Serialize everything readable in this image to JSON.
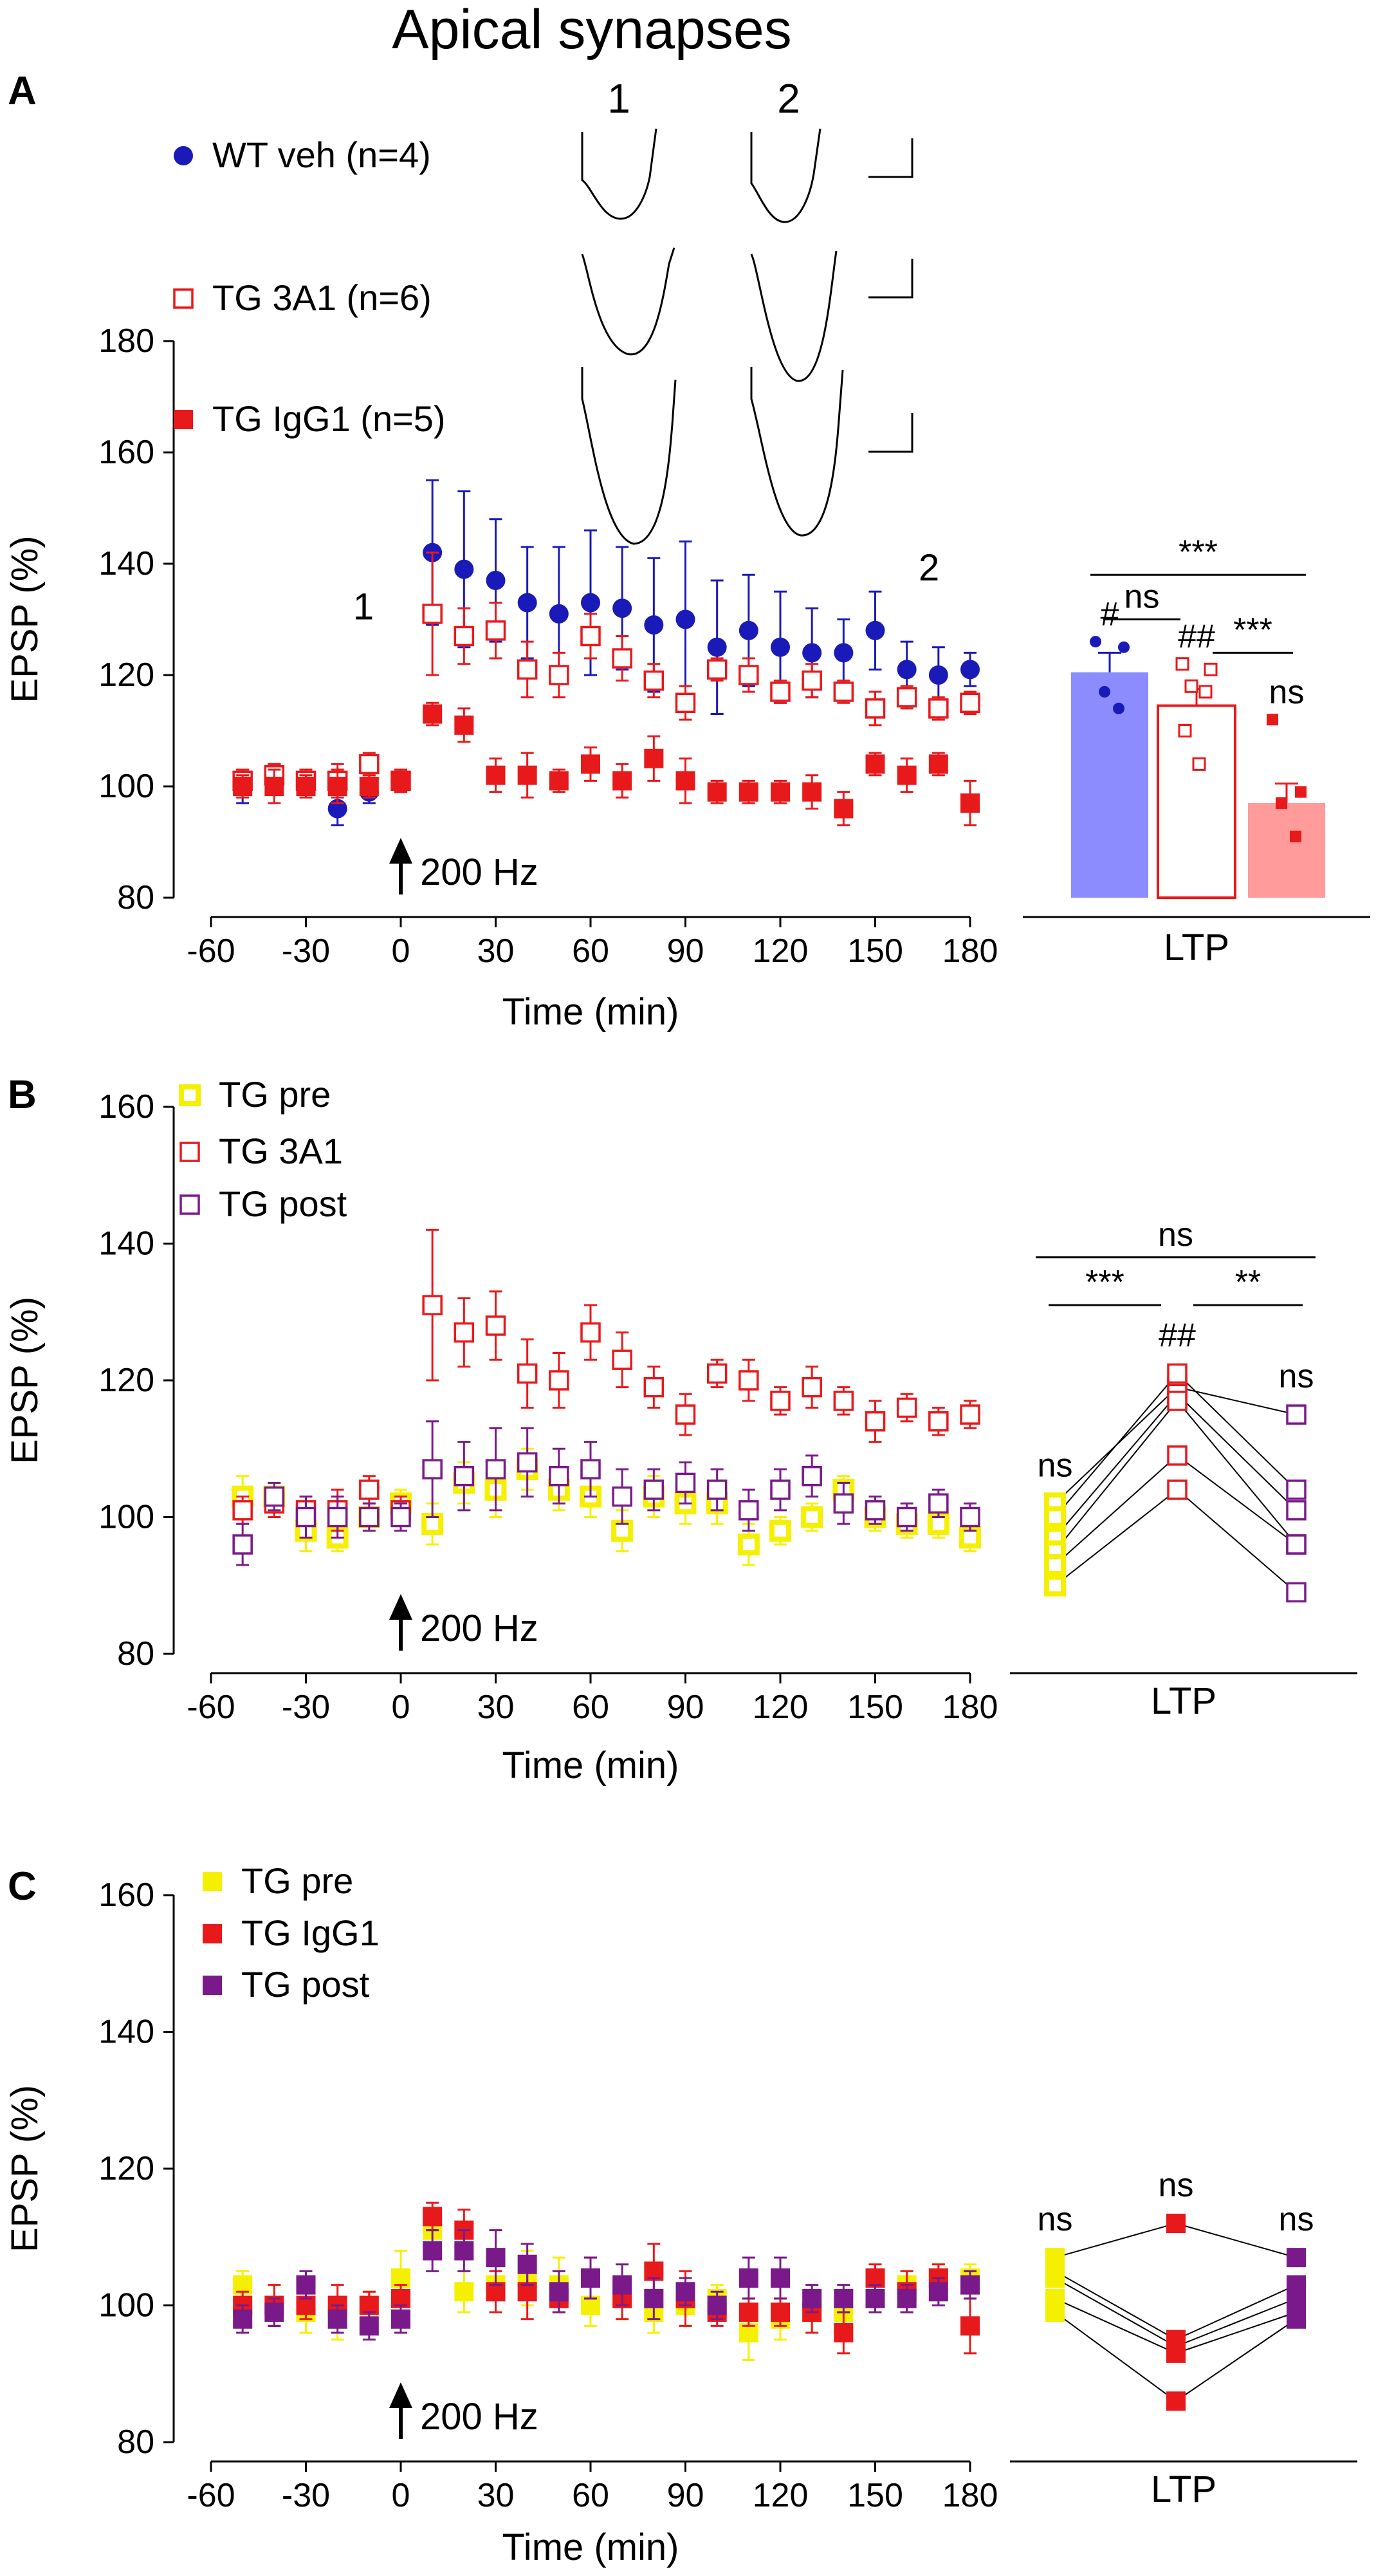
{
  "figure": {
    "title": "Apical synapses",
    "colors": {
      "wt": "#1a1ab8",
      "red": "#e8191b",
      "yellow": "#f5f000",
      "purple": "#7a1a8a",
      "wt_bar": "#8c8cff",
      "igg_bar": "#ff9b9b",
      "black": "#000000"
    },
    "arrow_icon": "up-arrow-icon"
  },
  "chart_data": [
    {
      "panel": "A",
      "type": "scatter",
      "title": "Apical synapses",
      "xlabel": "Time (min)",
      "ylabel": "EPSP (%)",
      "xlim": [
        -60,
        180
      ],
      "ylim": [
        80,
        180
      ],
      "xticks": [
        -60,
        -30,
        0,
        30,
        60,
        90,
        120,
        150,
        180
      ],
      "yticks": [
        80,
        100,
        120,
        140,
        160,
        180
      ],
      "stim_label": "200 Hz",
      "annotations": [
        "1",
        "2"
      ],
      "trace_labels": [
        "1",
        "2"
      ],
      "series": [
        {
          "name": "WT veh (n=4)",
          "marker": "filled-circle",
          "color": "#1a1ab8",
          "x": [
            -50,
            -40,
            -30,
            -20,
            -10,
            0,
            10,
            20,
            30,
            40,
            50,
            60,
            70,
            80,
            90,
            100,
            110,
            120,
            130,
            140,
            150,
            160,
            170,
            180
          ],
          "y": [
            100,
            102,
            101,
            96,
            99,
            101,
            142,
            139,
            137,
            133,
            131,
            133,
            132,
            129,
            130,
            125,
            128,
            125,
            124,
            124,
            128,
            121,
            120,
            121
          ],
          "err": [
            3,
            2,
            2,
            3,
            2,
            2,
            13,
            14,
            11,
            10,
            12,
            13,
            11,
            12,
            14,
            12,
            10,
            10,
            8,
            6,
            7,
            5,
            5,
            3
          ]
        },
        {
          "name": "TG 3A1 (n=6)",
          "marker": "open-square",
          "color": "#e8191b",
          "x": [
            -50,
            -40,
            -30,
            -20,
            -10,
            0,
            10,
            20,
            30,
            40,
            50,
            60,
            70,
            80,
            90,
            100,
            110,
            120,
            130,
            140,
            150,
            160,
            170,
            180
          ],
          "y": [
            101,
            102,
            101,
            101,
            104,
            101,
            131,
            127,
            128,
            121,
            120,
            127,
            123,
            119,
            115,
            121,
            120,
            117,
            119,
            117,
            114,
            116,
            114,
            115
          ],
          "err": [
            2,
            2,
            2,
            3,
            2,
            2,
            11,
            5,
            5,
            5,
            4,
            4,
            4,
            3,
            3,
            2,
            3,
            2,
            3,
            2,
            3,
            2,
            2,
            2
          ]
        },
        {
          "name": "TG IgG1 (n=5)",
          "marker": "filled-square",
          "color": "#e8191b",
          "x": [
            -50,
            -40,
            -30,
            -20,
            -10,
            0,
            10,
            20,
            30,
            40,
            50,
            60,
            70,
            80,
            90,
            100,
            110,
            120,
            130,
            140,
            150,
            160,
            170,
            180
          ],
          "y": [
            100,
            100,
            100,
            100,
            100,
            101,
            113,
            111,
            102,
            102,
            101,
            104,
            101,
            105,
            101,
            99,
            99,
            99,
            99,
            96,
            104,
            102,
            104,
            97
          ],
          "err": [
            2,
            3,
            2,
            3,
            2,
            2,
            2,
            3,
            3,
            4,
            2,
            3,
            3,
            4,
            4,
            2,
            2,
            2,
            3,
            3,
            2,
            3,
            2,
            4
          ]
        }
      ],
      "inset": {
        "xlabel": "LTP",
        "bars": [
          {
            "name": "WT veh",
            "value": 120.5,
            "err": 3.5,
            "color": "#8c8cff",
            "points": [
              126,
              125,
              117,
              114
            ],
            "label": "#"
          },
          {
            "name": "TG 3A1",
            "value": 114.5,
            "err": 3,
            "color": "#ffffff",
            "edge": "#e8191b",
            "points": [
              122,
              121,
              118,
              117,
              110,
              104
            ],
            "label": "##"
          },
          {
            "name": "TG IgG1",
            "value": 97,
            "err": 3.5,
            "color": "#ff9b9b",
            "points": [
              112,
              99,
              97,
              91
            ],
            "label": "ns"
          }
        ],
        "comparisons": [
          {
            "from": 0,
            "to": 2,
            "y": 138,
            "label": "***"
          },
          {
            "from": 0,
            "to": 1,
            "y": 130,
            "label": "ns"
          },
          {
            "from": 1,
            "to": 2,
            "y": 124,
            "label": "***"
          }
        ]
      }
    },
    {
      "panel": "B",
      "type": "scatter",
      "xlabel": "Time (min)",
      "ylabel": "EPSP (%)",
      "xlim": [
        -60,
        180
      ],
      "ylim": [
        80,
        160
      ],
      "xticks": [
        -60,
        -30,
        0,
        30,
        60,
        90,
        120,
        150,
        180
      ],
      "yticks": [
        80,
        100,
        120,
        140,
        160
      ],
      "stim_label": "200 Hz",
      "series": [
        {
          "name": "TG pre",
          "marker": "open-square-thick",
          "color": "#f5f000",
          "x": [
            -50,
            -40,
            -30,
            -20,
            -10,
            0,
            10,
            20,
            30,
            40,
            50,
            60,
            70,
            80,
            90,
            100,
            110,
            120,
            130,
            140,
            150,
            160,
            170,
            180
          ],
          "y": [
            103,
            103,
            98,
            97,
            100,
            102,
            99,
            105,
            104,
            107,
            104,
            103,
            98,
            103,
            102,
            102,
            96,
            98,
            100,
            104,
            100,
            99,
            99,
            97
          ],
          "err": [
            3,
            2,
            3,
            2,
            2,
            2,
            3,
            3,
            4,
            3,
            3,
            3,
            3,
            3,
            3,
            3,
            3,
            2,
            2,
            2,
            2,
            2,
            2,
            2
          ]
        },
        {
          "name": "TG 3A1",
          "marker": "open-square",
          "color": "#e8191b",
          "x": [
            -50,
            -40,
            -30,
            -20,
            -10,
            0,
            10,
            20,
            30,
            40,
            50,
            60,
            70,
            80,
            90,
            100,
            110,
            120,
            130,
            140,
            150,
            160,
            170,
            180
          ],
          "y": [
            101,
            102,
            101,
            101,
            104,
            101,
            131,
            127,
            128,
            121,
            120,
            127,
            123,
            119,
            115,
            121,
            120,
            117,
            119,
            117,
            114,
            116,
            114,
            115
          ],
          "err": [
            2,
            2,
            2,
            3,
            2,
            2,
            11,
            5,
            5,
            5,
            4,
            4,
            4,
            3,
            3,
            2,
            3,
            2,
            3,
            2,
            3,
            2,
            2,
            2
          ]
        },
        {
          "name": "TG post",
          "marker": "open-square",
          "color": "#7a1a8a",
          "x": [
            -50,
            -40,
            -30,
            -20,
            -10,
            0,
            10,
            20,
            30,
            40,
            50,
            60,
            70,
            80,
            90,
            100,
            110,
            120,
            130,
            140,
            150,
            160,
            170,
            180
          ],
          "y": [
            96,
            103,
            100,
            100,
            100,
            100,
            107,
            106,
            107,
            108,
            106,
            107,
            103,
            104,
            105,
            104,
            101,
            104,
            106,
            102,
            101,
            100,
            102,
            100
          ],
          "err": [
            3,
            2,
            3,
            3,
            2,
            2,
            7,
            5,
            6,
            5,
            4,
            4,
            4,
            3,
            3,
            3,
            3,
            3,
            3,
            3,
            2,
            2,
            2,
            2
          ]
        }
      ],
      "inset": {
        "xlabel": "LTP",
        "groups": [
          "TG pre",
          "TG 3A1",
          "TG post"
        ],
        "labels": [
          "ns",
          "##",
          "ns"
        ],
        "points": [
          [
            102,
            119,
            115
          ],
          [
            100,
            121,
            104
          ],
          [
            97,
            118,
            101
          ],
          [
            95,
            117,
            96
          ],
          [
            93,
            109,
            96
          ],
          [
            90,
            104,
            89
          ]
        ],
        "comparisons": [
          {
            "from": 0,
            "to": 2,
            "y": 138,
            "label": "ns"
          },
          {
            "from": 0,
            "to": 1,
            "y": 131,
            "label": "***"
          },
          {
            "from": 1,
            "to": 2,
            "y": 131,
            "label": "**"
          }
        ]
      }
    },
    {
      "panel": "C",
      "type": "scatter",
      "xlabel": "Time (min)",
      "ylabel": "EPSP (%)",
      "xlim": [
        -60,
        180
      ],
      "ylim": [
        80,
        160
      ],
      "xticks": [
        -60,
        -30,
        0,
        30,
        60,
        90,
        120,
        150,
        180
      ],
      "yticks": [
        80,
        100,
        120,
        140,
        160
      ],
      "stim_label": "200 Hz",
      "series": [
        {
          "name": "TG pre",
          "marker": "filled-square",
          "color": "#f5f000",
          "x": [
            -50,
            -40,
            -30,
            -20,
            -10,
            0,
            10,
            20,
            30,
            40,
            50,
            60,
            70,
            80,
            90,
            100,
            110,
            120,
            130,
            140,
            150,
            160,
            170,
            180
          ],
          "y": [
            103,
            100,
            99,
            98,
            100,
            104,
            111,
            102,
            103,
            104,
            103,
            100,
            101,
            99,
            100,
            101,
            96,
            98,
            99,
            99,
            101,
            103,
            104,
            104
          ],
          "err": [
            2,
            3,
            3,
            3,
            2,
            4,
            3,
            3,
            4,
            4,
            4,
            3,
            3,
            3,
            3,
            2,
            4,
            3,
            3,
            2,
            2,
            2,
            2,
            2
          ]
        },
        {
          "name": "TG IgG1",
          "marker": "filled-square",
          "color": "#e8191b",
          "x": [
            -50,
            -40,
            -30,
            -20,
            -10,
            0,
            10,
            20,
            30,
            40,
            50,
            60,
            70,
            80,
            90,
            100,
            110,
            120,
            130,
            140,
            150,
            160,
            170,
            180
          ],
          "y": [
            100,
            100,
            100,
            100,
            100,
            101,
            113,
            111,
            102,
            102,
            101,
            104,
            101,
            105,
            101,
            99,
            99,
            99,
            99,
            96,
            104,
            102,
            104,
            97
          ],
          "err": [
            2,
            3,
            2,
            3,
            2,
            2,
            2,
            3,
            3,
            4,
            2,
            3,
            3,
            4,
            4,
            2,
            2,
            2,
            3,
            3,
            2,
            3,
            2,
            4
          ]
        },
        {
          "name": "TG post",
          "marker": "filled-square",
          "color": "#7a1a8a",
          "x": [
            -50,
            -40,
            -30,
            -20,
            -10,
            0,
            10,
            20,
            30,
            40,
            50,
            60,
            70,
            80,
            90,
            100,
            110,
            120,
            130,
            140,
            150,
            160,
            170,
            180
          ],
          "y": [
            98,
            99,
            103,
            98,
            97,
            98,
            108,
            108,
            107,
            106,
            102,
            104,
            103,
            101,
            102,
            100,
            104,
            104,
            101,
            101,
            101,
            101,
            102,
            103
          ],
          "err": [
            2,
            2,
            2,
            2,
            2,
            2,
            3,
            3,
            4,
            3,
            3,
            3,
            3,
            3,
            2,
            2,
            3,
            3,
            2,
            2,
            2,
            2,
            2,
            2
          ]
        }
      ],
      "inset": {
        "xlabel": "LTP",
        "groups": [
          "TG pre",
          "TG IgG1",
          "TG post"
        ],
        "labels": [
          "ns",
          "ns",
          "ns"
        ],
        "points": [
          [
            107,
            112,
            107
          ],
          [
            105,
            95,
            103
          ],
          [
            104,
            94,
            101
          ],
          [
            101,
            93,
            99
          ],
          [
            99,
            86,
            98
          ]
        ],
        "comparisons": []
      }
    }
  ]
}
